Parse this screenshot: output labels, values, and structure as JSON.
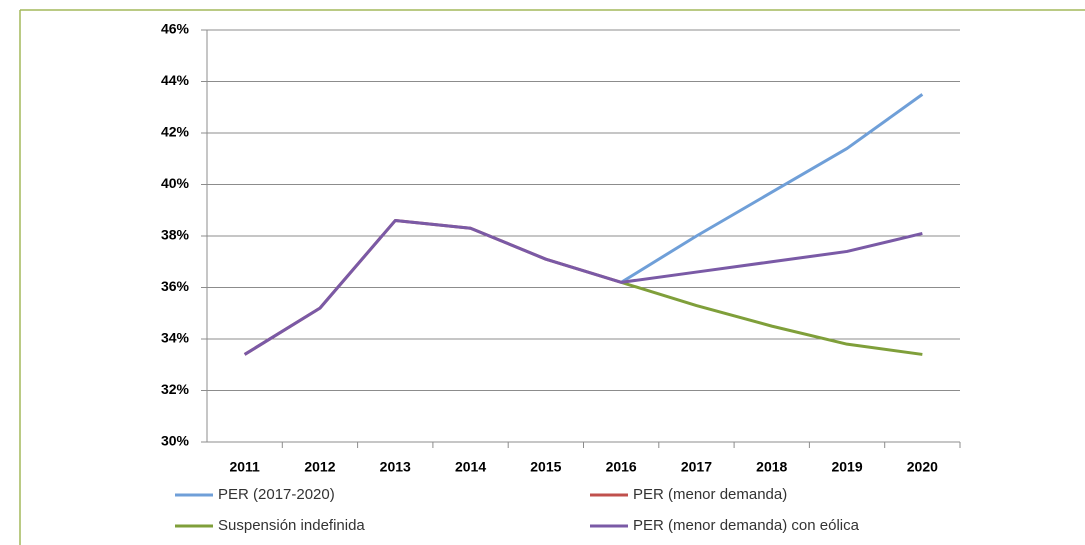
{
  "chart_data": {
    "type": "line",
    "categories": [
      "2011",
      "2012",
      "2013",
      "2014",
      "2015",
      "2016",
      "2017",
      "2018",
      "2019",
      "2020"
    ],
    "series": [
      {
        "name": "PER (2017-2020)",
        "color": "#6f9fd8",
        "values": [
          null,
          null,
          null,
          null,
          null,
          36.2,
          38.0,
          39.7,
          41.4,
          43.5
        ]
      },
      {
        "name": "PER (menor demanda)",
        "color": "#c0504d",
        "values": [
          33.4,
          35.2,
          38.6,
          38.3,
          37.1,
          36.2,
          null,
          null,
          null,
          null
        ]
      },
      {
        "name": "Suspensión indefinida",
        "color": "#7f9f3a",
        "values": [
          null,
          null,
          null,
          null,
          null,
          36.2,
          35.3,
          34.5,
          33.8,
          33.4
        ]
      },
      {
        "name": "PER (menor demanda) con eólica",
        "color": "#7a5aa6",
        "values": [
          33.4,
          35.2,
          38.6,
          38.3,
          37.1,
          36.2,
          36.6,
          37.0,
          37.4,
          38.1
        ]
      }
    ],
    "ylim": [
      30,
      46
    ],
    "yticks": [
      {
        "value": 30,
        "label": "30%"
      },
      {
        "value": 32,
        "label": "32%"
      },
      {
        "value": 34,
        "label": "34%"
      },
      {
        "value": 36,
        "label": "36%"
      },
      {
        "value": 38,
        "label": "38%"
      },
      {
        "value": 40,
        "label": "40%"
      },
      {
        "value": 42,
        "label": "42%"
      },
      {
        "value": 44,
        "label": "44%"
      },
      {
        "value": 46,
        "label": "46%"
      }
    ],
    "grid": true
  }
}
